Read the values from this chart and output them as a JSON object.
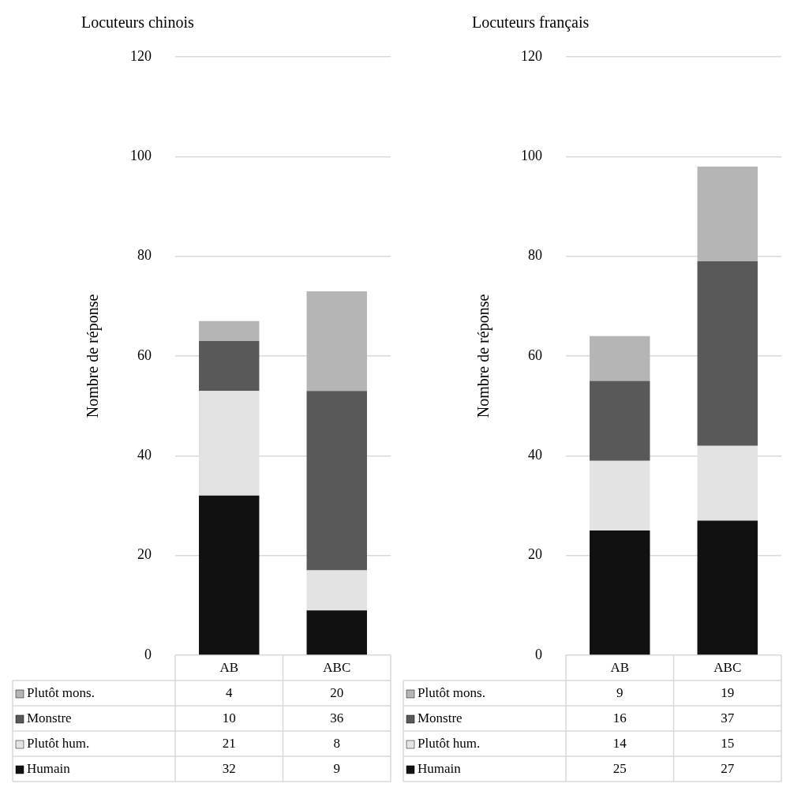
{
  "chart_data": [
    {
      "type": "bar",
      "title": "Locuteurs chinois",
      "ylabel": "Nombre de réponse",
      "categories": [
        "AB",
        "ABC"
      ],
      "stacked": true,
      "ylim": [
        0,
        120
      ],
      "yticks": [
        0,
        20,
        40,
        60,
        80,
        100,
        120
      ],
      "grid": "y",
      "legend": "bottom",
      "data_labels": true,
      "series": [
        {
          "name": "Humain",
          "color": "#111111",
          "values": [
            32,
            9
          ]
        },
        {
          "name": "Plutôt hum.",
          "color": "#e3e3e3",
          "values": [
            21,
            8
          ]
        },
        {
          "name": "Monstre",
          "color": "#595959",
          "values": [
            10,
            36
          ]
        },
        {
          "name": "Plutôt mons.",
          "color": "#b5b5b5",
          "values": [
            4,
            20
          ]
        }
      ]
    },
    {
      "type": "bar",
      "title": "Locuteurs français",
      "ylabel": "Nombre de réponse",
      "categories": [
        "AB",
        "ABC"
      ],
      "stacked": true,
      "ylim": [
        0,
        120
      ],
      "yticks": [
        0,
        20,
        40,
        60,
        80,
        100,
        120
      ],
      "grid": "y",
      "legend": "bottom",
      "data_labels": true,
      "series": [
        {
          "name": "Humain",
          "color": "#111111",
          "values": [
            25,
            27
          ]
        },
        {
          "name": "Plutôt hum.",
          "color": "#e3e3e3",
          "values": [
            14,
            15
          ]
        },
        {
          "name": "Monstre",
          "color": "#595959",
          "values": [
            16,
            37
          ]
        },
        {
          "name": "Plutôt mons.",
          "color": "#b5b5b5",
          "values": [
            9,
            19
          ]
        }
      ]
    }
  ]
}
